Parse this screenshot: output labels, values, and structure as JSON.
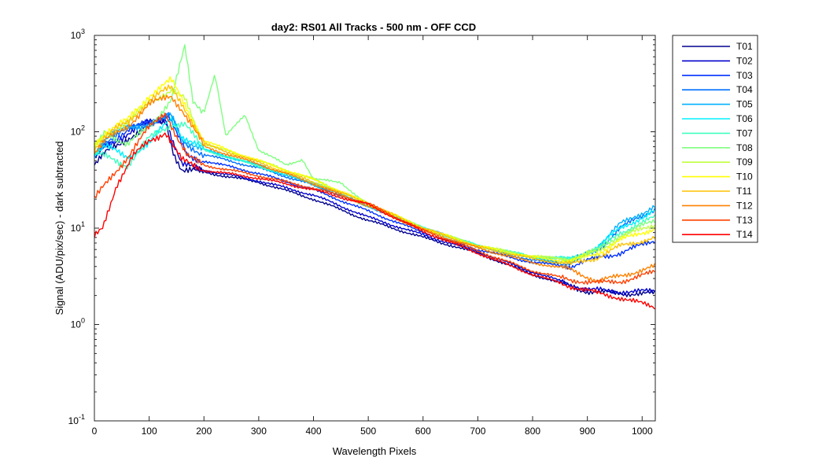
{
  "chart_data": {
    "type": "line",
    "title": "day2: RS01  All Tracks - 500 nm - OFF CCD",
    "xlabel": "Wavelength Pixels",
    "ylabel": "Signal (ADU/pix/sec) - dark subtracted",
    "xlim": [
      0,
      1024
    ],
    "ylim": [
      0.1,
      1000
    ],
    "yscale": "log",
    "xticks": [
      0,
      100,
      200,
      300,
      400,
      500,
      600,
      700,
      800,
      900,
      1000
    ],
    "yticks": [
      {
        "base": "10",
        "exp": "-1"
      },
      {
        "base": "10",
        "exp": "0"
      },
      {
        "base": "10",
        "exp": "1"
      },
      {
        "base": "10",
        "exp": "2"
      },
      {
        "base": "10",
        "exp": "3"
      }
    ],
    "grid": false,
    "legend_position": "outside-right",
    "series": [
      {
        "name": "T01",
        "color": "#00008f",
        "x": [
          0,
          20,
          60,
          100,
          130,
          145,
          160,
          200,
          300,
          400,
          500,
          600,
          700,
          800,
          900,
          960,
          1024
        ],
        "y": [
          45,
          60,
          85,
          115,
          130,
          60,
          40,
          38,
          30,
          20,
          12,
          8,
          5.5,
          3.3,
          2.2,
          2.1,
          2.1
        ]
      },
      {
        "name": "T02",
        "color": "#0000cc",
        "x": [
          0,
          20,
          60,
          100,
          130,
          145,
          160,
          200,
          300,
          400,
          500,
          600,
          700,
          800,
          900,
          960,
          1024
        ],
        "y": [
          52,
          70,
          95,
          125,
          140,
          75,
          45,
          40,
          31,
          22,
          13,
          8.5,
          5.7,
          3.5,
          2.3,
          2.2,
          2.2
        ]
      },
      {
        "name": "T03",
        "color": "#0030ff",
        "x": [
          0,
          20,
          60,
          100,
          135,
          150,
          170,
          200,
          300,
          400,
          500,
          600,
          700,
          800,
          870,
          920,
          960,
          1024
        ],
        "y": [
          55,
          75,
          100,
          130,
          150,
          95,
          55,
          50,
          37,
          25,
          15,
          9,
          6,
          4.4,
          4.0,
          5.0,
          5.5,
          7.5
        ]
      },
      {
        "name": "T04",
        "color": "#0070ff",
        "x": [
          0,
          20,
          60,
          100,
          140,
          160,
          200,
          300,
          400,
          500,
          600,
          700,
          800,
          870,
          920,
          960,
          1024
        ],
        "y": [
          58,
          80,
          105,
          125,
          145,
          80,
          58,
          42,
          28,
          17,
          10,
          6.5,
          4.6,
          4.3,
          6,
          10,
          16
        ]
      },
      {
        "name": "T05",
        "color": "#00b0ff",
        "x": [
          0,
          20,
          60,
          100,
          140,
          160,
          200,
          300,
          400,
          500,
          600,
          700,
          800,
          870,
          920,
          960,
          1024
        ],
        "y": [
          60,
          85,
          110,
          120,
          150,
          85,
          65,
          45,
          28,
          17,
          10,
          6.5,
          4.8,
          4.5,
          6.5,
          11,
          17
        ]
      },
      {
        "name": "T06",
        "color": "#00f0ff",
        "x": [
          0,
          20,
          60,
          100,
          140,
          160,
          200,
          300,
          400,
          500,
          600,
          700,
          800,
          870,
          920,
          960,
          1024
        ],
        "y": [
          58,
          70,
          55,
          75,
          140,
          90,
          65,
          44,
          29,
          17,
          10,
          6.5,
          5,
          4.7,
          6.5,
          10,
          15
        ]
      },
      {
        "name": "T07",
        "color": "#40ffc0",
        "x": [
          0,
          20,
          60,
          100,
          140,
          165,
          200,
          300,
          400,
          500,
          600,
          700,
          800,
          870,
          920,
          960,
          1024
        ],
        "y": [
          60,
          55,
          45,
          85,
          120,
          120,
          65,
          44,
          30,
          17,
          10,
          6.6,
          5.1,
          4.8,
          6,
          9,
          13
        ]
      },
      {
        "name": "T08",
        "color": "#80ff80",
        "x": [
          0,
          20,
          60,
          100,
          140,
          165,
          180,
          200,
          220,
          240,
          275,
          300,
          350,
          380,
          400,
          450,
          500,
          600,
          700,
          800,
          870,
          920,
          960,
          1024
        ],
        "y": [
          65,
          100,
          75,
          110,
          220,
          750,
          200,
          160,
          400,
          90,
          150,
          65,
          45,
          52,
          32,
          30,
          17,
          10,
          6.5,
          5,
          4.7,
          6,
          8.5,
          12
        ]
      },
      {
        "name": "T09",
        "color": "#c0ff40",
        "x": [
          0,
          20,
          60,
          100,
          140,
          165,
          200,
          300,
          400,
          500,
          600,
          700,
          800,
          870,
          920,
          960,
          1024
        ],
        "y": [
          70,
          95,
          120,
          210,
          260,
          220,
          75,
          50,
          32,
          18,
          10,
          6.6,
          5.1,
          4.8,
          5.8,
          8,
          11
        ]
      },
      {
        "name": "T10",
        "color": "#ffff00",
        "x": [
          0,
          20,
          60,
          100,
          140,
          160,
          200,
          300,
          400,
          500,
          600,
          700,
          800,
          870,
          920,
          960,
          1024
        ],
        "y": [
          75,
          100,
          130,
          240,
          340,
          220,
          80,
          50,
          32,
          18,
          10,
          6.5,
          5,
          4.5,
          5.5,
          7.5,
          10
        ]
      },
      {
        "name": "T11",
        "color": "#ffc000",
        "x": [
          0,
          20,
          60,
          100,
          140,
          160,
          200,
          300,
          400,
          500,
          600,
          700,
          800,
          870,
          920,
          960,
          1024
        ],
        "y": [
          68,
          90,
          125,
          210,
          290,
          200,
          75,
          48,
          30,
          18,
          10,
          6.4,
          4.8,
          4.2,
          5,
          6.5,
          8
        ]
      },
      {
        "name": "T12",
        "color": "#ff8000",
        "x": [
          0,
          20,
          60,
          100,
          140,
          160,
          200,
          300,
          400,
          500,
          600,
          700,
          800,
          870,
          920,
          960,
          1024
        ],
        "y": [
          60,
          80,
          115,
          190,
          240,
          170,
          70,
          46,
          29,
          17,
          9.5,
          6.2,
          4.4,
          3.7,
          2.8,
          3.2,
          4
        ]
      },
      {
        "name": "T13",
        "color": "#ff4000",
        "x": [
          0,
          20,
          60,
          100,
          130,
          150,
          170,
          200,
          300,
          400,
          500,
          600,
          700,
          800,
          870,
          920,
          960,
          1024
        ],
        "y": [
          20,
          28,
          55,
          110,
          160,
          90,
          55,
          45,
          35,
          26,
          18,
          9.5,
          5.8,
          3.6,
          2.9,
          2.7,
          2.8,
          3.5
        ]
      },
      {
        "name": "T14",
        "color": "#ff0000",
        "x": [
          0,
          15,
          40,
          70,
          100,
          130,
          160,
          200,
          300,
          400,
          500,
          600,
          700,
          800,
          880,
          920,
          960,
          1024
        ],
        "y": [
          8,
          10,
          28,
          55,
          80,
          100,
          50,
          40,
          33,
          25,
          17.5,
          9.2,
          5.5,
          3.3,
          2.4,
          2.1,
          1.9,
          1.5
        ]
      }
    ]
  }
}
